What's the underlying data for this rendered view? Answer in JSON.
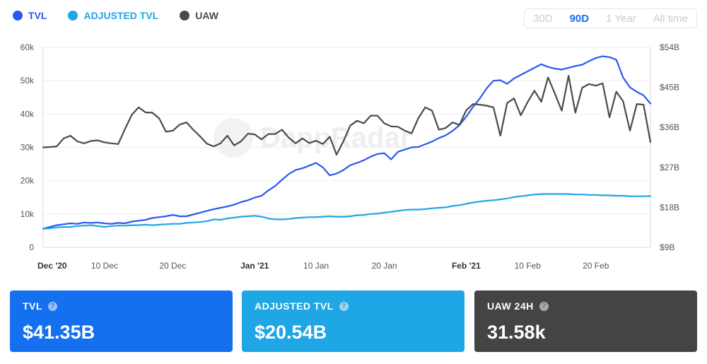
{
  "legend": [
    {
      "label": "TVL",
      "color": "#2b57f3"
    },
    {
      "label": "ADJUSTED TVL",
      "color": "#1ea6e5"
    },
    {
      "label": "UAW",
      "color": "#4a4a4a"
    }
  ],
  "range_selector": {
    "options": [
      "30D",
      "90D",
      "1 Year",
      "All time"
    ],
    "active": "90D"
  },
  "watermark": "DappRadar",
  "cards": [
    {
      "label": "TVL",
      "value": "$41.35B",
      "color": "#1570ef"
    },
    {
      "label": "ADJUSTED TVL",
      "value": "$20.54B",
      "color": "#1ea6e5"
    },
    {
      "label": "UAW 24H",
      "value": "31.58k",
      "color": "#444444"
    }
  ],
  "chart_data": {
    "type": "line",
    "left_axis": {
      "ticks": [
        "0",
        "10k",
        "20k",
        "30k",
        "40k",
        "50k",
        "60k"
      ],
      "range": [
        0,
        60000
      ]
    },
    "right_axis": {
      "ticks": [
        "$9B",
        "$18B",
        "$27B",
        "$36B",
        "$45B",
        "$54B"
      ],
      "range": [
        9,
        54
      ]
    },
    "x_axis": {
      "ticks": [
        {
          "label": "Dec '20",
          "day": 0,
          "bold": true
        },
        {
          "label": "10 Dec",
          "day": 9
        },
        {
          "label": "20 Dec",
          "day": 19
        },
        {
          "label": "Jan '21",
          "day": 31,
          "bold": true
        },
        {
          "label": "10 Jan",
          "day": 40
        },
        {
          "label": "20 Jan",
          "day": 50
        },
        {
          "label": "Feb '21",
          "day": 62,
          "bold": true
        },
        {
          "label": "10 Feb",
          "day": 71
        },
        {
          "label": "20 Feb",
          "day": 81
        }
      ],
      "range": [
        0,
        89
      ]
    },
    "series": [
      {
        "name": "TVL",
        "axis": "right",
        "color": "#2b57f3",
        "values": [
          13.2,
          13.6,
          14.0,
          14.2,
          14.4,
          14.3,
          14.6,
          14.5,
          14.6,
          14.4,
          14.3,
          14.5,
          14.4,
          14.8,
          15.0,
          15.2,
          15.6,
          15.8,
          16.0,
          16.3,
          16.0,
          16.0,
          16.4,
          16.8,
          17.2,
          17.6,
          17.9,
          18.2,
          18.6,
          19.2,
          19.6,
          20.2,
          20.6,
          21.8,
          22.8,
          24.2,
          25.5,
          26.4,
          26.8,
          27.4,
          28.0,
          27.0,
          25.2,
          25.6,
          26.4,
          27.5,
          28.0,
          28.6,
          29.4,
          30.0,
          30.2,
          28.8,
          30.5,
          31.0,
          31.5,
          31.6,
          32.2,
          32.8,
          33.6,
          34.2,
          35.2,
          36.5,
          38.4,
          40.6,
          42.5,
          44.8,
          46.5,
          46.6,
          45.8,
          47.0,
          47.8,
          48.6,
          49.4,
          50.2,
          49.6,
          49.2,
          49.0,
          49.4,
          49.8,
          50.1,
          50.9,
          51.6,
          52.0,
          51.8,
          51.2,
          47.2,
          45.0,
          44.0,
          43.2,
          41.35
        ]
      },
      {
        "name": "ADJUSTED TVL",
        "axis": "right",
        "color": "#1ea6e5",
        "values": [
          13.2,
          13.3,
          13.5,
          13.6,
          13.6,
          13.8,
          13.9,
          14.0,
          13.8,
          13.6,
          13.8,
          13.9,
          13.9,
          14.0,
          14.0,
          14.1,
          14.0,
          14.1,
          14.2,
          14.3,
          14.3,
          14.5,
          14.6,
          14.7,
          14.9,
          15.3,
          15.2,
          15.5,
          15.7,
          15.9,
          16.0,
          16.1,
          15.9,
          15.5,
          15.3,
          15.3,
          15.4,
          15.6,
          15.7,
          15.8,
          15.8,
          15.9,
          16.0,
          15.9,
          15.9,
          16.0,
          16.2,
          16.3,
          16.5,
          16.6,
          16.8,
          17.0,
          17.2,
          17.4,
          17.5,
          17.5,
          17.6,
          17.8,
          17.9,
          18.0,
          18.3,
          18.5,
          18.8,
          19.1,
          19.3,
          19.5,
          19.6,
          19.8,
          20.0,
          20.3,
          20.5,
          20.7,
          20.9,
          21.0,
          21.0,
          21.0,
          21.0,
          21.0,
          20.9,
          20.9,
          20.8,
          20.8,
          20.7,
          20.7,
          20.6,
          20.6,
          20.5,
          20.5,
          20.5,
          20.54
        ]
      },
      {
        "name": "UAW",
        "axis": "left",
        "color": "#4a4a4a",
        "values": [
          30000,
          30100,
          30300,
          32700,
          33500,
          31800,
          31200,
          31900,
          32100,
          31500,
          31200,
          31000,
          35500,
          39800,
          42000,
          40500,
          40400,
          38700,
          34700,
          35000,
          36800,
          37500,
          35300,
          33300,
          31100,
          30300,
          31200,
          33500,
          30600,
          31800,
          34100,
          33900,
          32400,
          34000,
          34000,
          35300,
          32900,
          31200,
          32700,
          31300,
          32000,
          31000,
          33200,
          27800,
          31800,
          36500,
          38000,
          37200,
          39500,
          39500,
          37200,
          36300,
          36200,
          35000,
          34200,
          38800,
          42000,
          41000,
          35300,
          35800,
          37500,
          36700,
          41100,
          43000,
          42800,
          42500,
          42000,
          33500,
          43300,
          44700,
          39600,
          43600,
          47000,
          43700,
          51000,
          46100,
          41000,
          51500,
          40400,
          47900,
          49000,
          48500,
          49200,
          39000,
          46700,
          43800,
          35000,
          43000,
          42800,
          31580
        ]
      }
    ]
  }
}
